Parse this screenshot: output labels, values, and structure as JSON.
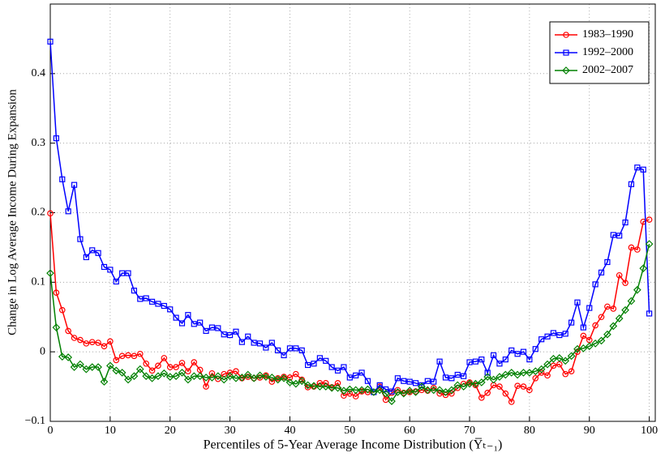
{
  "chart_data": {
    "type": "line",
    "xlabel": "Percentiles of 5-Year Average Income Distribution (Y̅ₜ₋₁)",
    "ylabel": "Change in Log Average Income During Expansion",
    "x": [
      0,
      1,
      2,
      3,
      4,
      5,
      6,
      7,
      8,
      9,
      10,
      11,
      12,
      13,
      14,
      15,
      16,
      17,
      18,
      19,
      20,
      21,
      22,
      23,
      24,
      25,
      26,
      27,
      28,
      29,
      30,
      31,
      32,
      33,
      34,
      35,
      36,
      37,
      38,
      39,
      40,
      41,
      42,
      43,
      44,
      45,
      46,
      47,
      48,
      49,
      50,
      51,
      52,
      53,
      54,
      55,
      56,
      57,
      58,
      59,
      60,
      61,
      62,
      63,
      64,
      65,
      66,
      67,
      68,
      69,
      70,
      71,
      72,
      73,
      74,
      75,
      76,
      77,
      78,
      79,
      80,
      81,
      82,
      83,
      84,
      85,
      86,
      87,
      88,
      89,
      90,
      91,
      92,
      93,
      94,
      95,
      96,
      97,
      98,
      99,
      100
    ],
    "series": [
      {
        "name": "1983–1990",
        "color": "#ff0000",
        "marker": "circle",
        "values": [
          0.199,
          0.085,
          0.06,
          0.03,
          0.02,
          0.017,
          0.012,
          0.014,
          0.013,
          0.008,
          0.015,
          -0.012,
          -0.006,
          -0.005,
          -0.006,
          -0.003,
          -0.017,
          -0.027,
          -0.02,
          -0.009,
          -0.022,
          -0.022,
          -0.016,
          -0.028,
          -0.015,
          -0.026,
          -0.05,
          -0.031,
          -0.039,
          -0.032,
          -0.03,
          -0.028,
          -0.038,
          -0.036,
          -0.038,
          -0.037,
          -0.034,
          -0.043,
          -0.038,
          -0.036,
          -0.037,
          -0.032,
          -0.04,
          -0.051,
          -0.05,
          -0.045,
          -0.045,
          -0.051,
          -0.045,
          -0.063,
          -0.06,
          -0.064,
          -0.057,
          -0.058,
          -0.058,
          -0.05,
          -0.069,
          -0.059,
          -0.055,
          -0.059,
          -0.058,
          -0.057,
          -0.055,
          -0.056,
          -0.052,
          -0.06,
          -0.062,
          -0.06,
          -0.052,
          -0.046,
          -0.044,
          -0.048,
          -0.066,
          -0.059,
          -0.048,
          -0.05,
          -0.06,
          -0.072,
          -0.049,
          -0.05,
          -0.055,
          -0.038,
          -0.03,
          -0.034,
          -0.02,
          -0.018,
          -0.032,
          -0.028,
          0.0,
          0.023,
          0.017,
          0.038,
          0.05,
          0.065,
          0.062,
          0.11,
          0.099,
          0.15,
          0.147,
          0.187,
          0.19
        ]
      },
      {
        "name": "1992–2000",
        "color": "#0000ff",
        "marker": "square",
        "values": [
          0.446,
          0.307,
          0.248,
          0.202,
          0.24,
          0.162,
          0.136,
          0.146,
          0.142,
          0.122,
          0.118,
          0.101,
          0.113,
          0.113,
          0.088,
          0.076,
          0.077,
          0.072,
          0.069,
          0.066,
          0.061,
          0.049,
          0.041,
          0.053,
          0.04,
          0.042,
          0.03,
          0.035,
          0.034,
          0.025,
          0.024,
          0.029,
          0.014,
          0.022,
          0.013,
          0.012,
          0.006,
          0.013,
          0.002,
          -0.005,
          0.005,
          0.005,
          0.002,
          -0.019,
          -0.017,
          -0.009,
          -0.013,
          -0.022,
          -0.027,
          -0.022,
          -0.037,
          -0.034,
          -0.03,
          -0.042,
          -0.058,
          -0.048,
          -0.054,
          -0.057,
          -0.038,
          -0.042,
          -0.043,
          -0.045,
          -0.048,
          -0.042,
          -0.043,
          -0.014,
          -0.037,
          -0.038,
          -0.033,
          -0.035,
          -0.015,
          -0.014,
          -0.011,
          -0.03,
          -0.005,
          -0.017,
          -0.011,
          0.002,
          -0.003,
          0.0,
          -0.011,
          0.004,
          0.018,
          0.022,
          0.027,
          0.024,
          0.026,
          0.042,
          0.071,
          0.035,
          0.063,
          0.097,
          0.114,
          0.129,
          0.168,
          0.167,
          0.186,
          0.241,
          0.265,
          0.262,
          0.055
        ]
      },
      {
        "name": "2002–2007",
        "color": "#008000",
        "marker": "diamond",
        "values": [
          0.113,
          0.035,
          -0.007,
          -0.008,
          -0.022,
          -0.018,
          -0.025,
          -0.022,
          -0.022,
          -0.043,
          -0.02,
          -0.027,
          -0.03,
          -0.04,
          -0.035,
          -0.025,
          -0.035,
          -0.038,
          -0.035,
          -0.031,
          -0.036,
          -0.035,
          -0.03,
          -0.04,
          -0.035,
          -0.035,
          -0.037,
          -0.037,
          -0.035,
          -0.04,
          -0.035,
          -0.038,
          -0.037,
          -0.033,
          -0.038,
          -0.034,
          -0.036,
          -0.037,
          -0.04,
          -0.038,
          -0.044,
          -0.046,
          -0.042,
          -0.048,
          -0.049,
          -0.05,
          -0.05,
          -0.052,
          -0.052,
          -0.056,
          -0.054,
          -0.055,
          -0.055,
          -0.054,
          -0.058,
          -0.055,
          -0.06,
          -0.071,
          -0.058,
          -0.06,
          -0.056,
          -0.058,
          -0.05,
          -0.055,
          -0.055,
          -0.055,
          -0.058,
          -0.055,
          -0.048,
          -0.05,
          -0.046,
          -0.046,
          -0.044,
          -0.036,
          -0.04,
          -0.036,
          -0.033,
          -0.03,
          -0.033,
          -0.03,
          -0.03,
          -0.028,
          -0.025,
          -0.018,
          -0.01,
          -0.009,
          -0.013,
          -0.006,
          0.004,
          0.005,
          0.008,
          0.012,
          0.016,
          0.025,
          0.037,
          0.048,
          0.06,
          0.073,
          0.089,
          0.12,
          0.155
        ]
      }
    ],
    "xlim": [
      0,
      101
    ],
    "ylim": [
      -0.1,
      0.5
    ],
    "xticks": [
      0,
      10,
      20,
      30,
      40,
      50,
      60,
      70,
      80,
      90,
      100
    ],
    "yticks": [
      {
        "value": -0.1,
        "label": "−0.1"
      },
      0,
      0.1,
      0.2,
      0.3,
      0.4
    ],
    "grid": true,
    "legend": "upper right"
  }
}
